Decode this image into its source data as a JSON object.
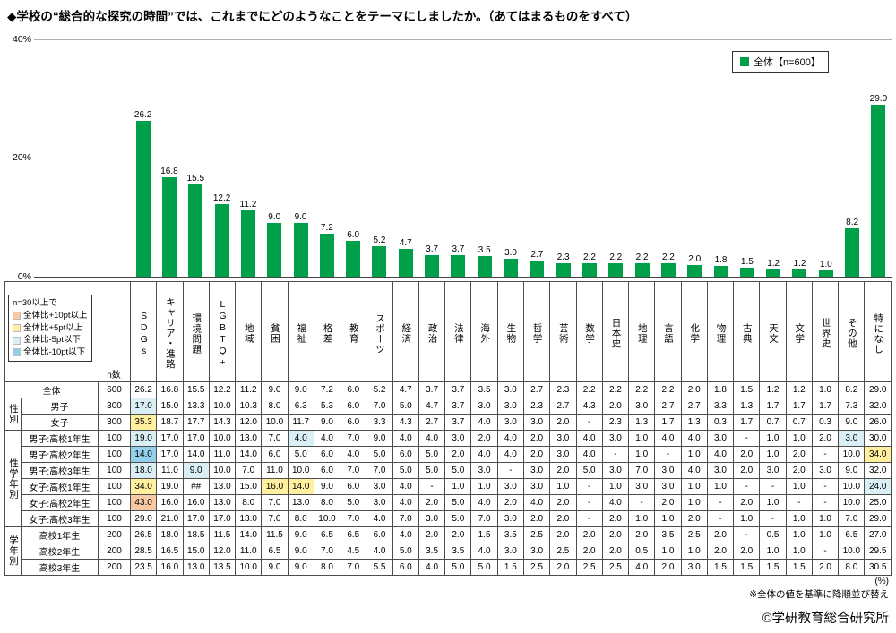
{
  "title": "◆学校の“総合的な探究の時間”では、これまでにどのようなことをテーマにしましたか。（あてはまるものをすべて）",
  "chart_data": {
    "type": "bar",
    "title": "学校の総合的な探究の時間でテーマにしたこと",
    "legend": "全体【n=600】",
    "legend_position": "top-right",
    "grid": true,
    "ylim": [
      0,
      40
    ],
    "yticks": [
      "40%",
      "20%",
      "0%"
    ],
    "bar_color": "#00a04b",
    "categories": [
      "SDGs",
      "キャリア・進路",
      "環境問題",
      "LGBTQ+",
      "地域",
      "貧困",
      "福祉",
      "格差",
      "教育",
      "スポーツ",
      "経済",
      "政治",
      "法律",
      "海外",
      "生物",
      "哲学",
      "芸術",
      "数学",
      "日本史",
      "地理",
      "言語",
      "化学",
      "物理",
      "古典",
      "天文",
      "文学",
      "世界史",
      "その他",
      "特になし"
    ],
    "values": [
      26.2,
      16.8,
      15.5,
      12.2,
      11.2,
      9.0,
      9.0,
      7.2,
      6.0,
      5.2,
      4.7,
      3.7,
      3.7,
      3.5,
      3.0,
      2.7,
      2.3,
      2.2,
      2.2,
      2.2,
      2.2,
      2.0,
      1.8,
      1.5,
      1.2,
      1.2,
      1.0,
      8.2,
      29.0
    ],
    "labels": [
      "26.2",
      "16.8",
      "15.5",
      "12.2",
      "11.2",
      "9.0",
      "9.0",
      "7.2",
      "6.0",
      "5.2",
      "4.7",
      "3.7",
      "3.7",
      "3.5",
      "3.0",
      "2.7",
      "2.3",
      "2.2",
      "2.2",
      "2.2",
      "2.2",
      "2.0",
      "1.8",
      "1.5",
      "1.2",
      "1.2",
      "1.0",
      "8.2",
      "29.0"
    ]
  },
  "table": {
    "n_label": "n数",
    "columns": [
      "SDGs",
      "キャリア・進路",
      "環境問題",
      "LGBTQ+",
      "地域",
      "貧困",
      "福祉",
      "格差",
      "教育",
      "スポーツ",
      "経済",
      "政治",
      "法律",
      "海外",
      "生物",
      "哲学",
      "芸術",
      "数学",
      "日本史",
      "地理",
      "言語",
      "化学",
      "物理",
      "古典",
      "天文",
      "文学",
      "世界史",
      "その他",
      "特になし"
    ],
    "threshold_legend": {
      "intro": "n=30以上で",
      "items": [
        {
          "key": "plus10",
          "label": "全体比+10pt以上"
        },
        {
          "key": "plus5",
          "label": "全体比+5pt以上"
        },
        {
          "key": "minus5",
          "label": "全体比-5pt以下"
        },
        {
          "key": "minus10",
          "label": "全体比-10pt以下"
        }
      ],
      "colors": {
        "plus10": "#f7c9a4",
        "plus5": "#ffef9e",
        "minus5": "#daeef5",
        "minus10": "#92d0ec"
      }
    },
    "rows": [
      {
        "group": "",
        "group_rows": 0,
        "label": "全体",
        "n": "600",
        "values": [
          "26.2",
          "16.8",
          "15.5",
          "12.2",
          "11.2",
          "9.0",
          "9.0",
          "7.2",
          "6.0",
          "5.2",
          "4.7",
          "3.7",
          "3.7",
          "3.5",
          "3.0",
          "2.7",
          "2.3",
          "2.2",
          "2.2",
          "2.2",
          "2.2",
          "2.0",
          "1.8",
          "1.5",
          "1.2",
          "1.2",
          "1.0",
          "8.2",
          "29.0"
        ],
        "hl": {}
      },
      {
        "group": "性別",
        "group_rows": 2,
        "label": "男子",
        "n": "300",
        "values": [
          "17.0",
          "15.0",
          "13.3",
          "10.0",
          "10.3",
          "8.0",
          "6.3",
          "5.3",
          "6.0",
          "7.0",
          "5.0",
          "4.7",
          "3.7",
          "3.0",
          "3.0",
          "2.3",
          "2.7",
          "4.3",
          "2.0",
          "3.0",
          "2.7",
          "2.7",
          "3.3",
          "1.3",
          "1.7",
          "1.7",
          "1.7",
          "7.3",
          "32.0"
        ],
        "hl": {
          "0": "minus5"
        }
      },
      {
        "label": "女子",
        "n": "300",
        "values": [
          "35.3",
          "18.7",
          "17.7",
          "14.3",
          "12.0",
          "10.0",
          "11.7",
          "9.0",
          "6.0",
          "3.3",
          "4.3",
          "2.7",
          "3.7",
          "4.0",
          "3.0",
          "3.0",
          "2.0",
          "-",
          "2.3",
          "1.3",
          "1.7",
          "1.3",
          "0.3",
          "1.7",
          "0.7",
          "0.7",
          "0.3",
          "9.0",
          "26.0"
        ],
        "hl": {
          "0": "plus5"
        }
      },
      {
        "group": "性学年別",
        "group_rows": 6,
        "label": "男子:高校1年生",
        "n": "100",
        "values": [
          "19.0",
          "17.0",
          "17.0",
          "10.0",
          "13.0",
          "7.0",
          "4.0",
          "4.0",
          "7.0",
          "9.0",
          "4.0",
          "4.0",
          "3.0",
          "2.0",
          "4.0",
          "2.0",
          "3.0",
          "4.0",
          "3.0",
          "1.0",
          "4.0",
          "4.0",
          "3.0",
          "-",
          "1.0",
          "1.0",
          "2.0",
          "3.0",
          "30.0"
        ],
        "hl": {
          "0": "minus5",
          "6": "minus5",
          "27": "minus5"
        }
      },
      {
        "label": "男子:高校2年生",
        "n": "100",
        "values": [
          "14.0",
          "17.0",
          "14.0",
          "11.0",
          "14.0",
          "6.0",
          "5.0",
          "6.0",
          "4.0",
          "5.0",
          "6.0",
          "5.0",
          "2.0",
          "4.0",
          "4.0",
          "2.0",
          "3.0",
          "4.0",
          "-",
          "1.0",
          "-",
          "1.0",
          "4.0",
          "2.0",
          "1.0",
          "2.0",
          "-",
          "10.0",
          "34.0"
        ],
        "hl": {
          "0": "minus10",
          "28": "plus5"
        }
      },
      {
        "label": "男子:高校3年生",
        "n": "100",
        "values": [
          "18.0",
          "11.0",
          "9.0",
          "10.0",
          "7.0",
          "11.0",
          "10.0",
          "6.0",
          "7.0",
          "7.0",
          "5.0",
          "5.0",
          "5.0",
          "3.0",
          "-",
          "3.0",
          "2.0",
          "5.0",
          "3.0",
          "7.0",
          "3.0",
          "4.0",
          "3.0",
          "2.0",
          "3.0",
          "2.0",
          "3.0",
          "9.0",
          "32.0"
        ],
        "hl": {
          "0": "minus5",
          "2": "minus5"
        }
      },
      {
        "label": "女子:高校1年生",
        "n": "100",
        "values": [
          "34.0",
          "19.0",
          "##",
          "13.0",
          "15.0",
          "16.0",
          "14.0",
          "9.0",
          "6.0",
          "3.0",
          "4.0",
          "-",
          "1.0",
          "1.0",
          "3.0",
          "3.0",
          "1.0",
          "-",
          "1.0",
          "3.0",
          "3.0",
          "1.0",
          "1.0",
          "-",
          "-",
          "1.0",
          "-",
          "10.0",
          "24.0"
        ],
        "hl": {
          "0": "plus5",
          "5": "plus5",
          "6": "plus5",
          "28": "minus5"
        }
      },
      {
        "label": "女子:高校2年生",
        "n": "100",
        "values": [
          "43.0",
          "16.0",
          "16.0",
          "13.0",
          "8.0",
          "7.0",
          "13.0",
          "8.0",
          "5.0",
          "3.0",
          "4.0",
          "2.0",
          "5.0",
          "4.0",
          "2.0",
          "4.0",
          "2.0",
          "-",
          "4.0",
          "-",
          "2.0",
          "1.0",
          "-",
          "2.0",
          "1.0",
          "-",
          "-",
          "10.0",
          "25.0"
        ],
        "hl": {
          "0": "plus10"
        }
      },
      {
        "label": "女子:高校3年生",
        "n": "100",
        "values": [
          "29.0",
          "21.0",
          "17.0",
          "17.0",
          "13.0",
          "7.0",
          "8.0",
          "10.0",
          "7.0",
          "4.0",
          "7.0",
          "3.0",
          "5.0",
          "7.0",
          "3.0",
          "2.0",
          "2.0",
          "-",
          "2.0",
          "1.0",
          "1.0",
          "2.0",
          "-",
          "1.0",
          "-",
          "1.0",
          "1.0",
          "7.0",
          "29.0"
        ],
        "hl": {}
      },
      {
        "group": "学年別",
        "group_rows": 3,
        "label": "高校1年生",
        "n": "200",
        "values": [
          "26.5",
          "18.0",
          "18.5",
          "11.5",
          "14.0",
          "11.5",
          "9.0",
          "6.5",
          "6.5",
          "6.0",
          "4.0",
          "2.0",
          "2.0",
          "1.5",
          "3.5",
          "2.5",
          "2.0",
          "2.0",
          "2.0",
          "2.0",
          "3.5",
          "2.5",
          "2.0",
          "-",
          "0.5",
          "1.0",
          "1.0",
          "6.5",
          "27.0"
        ],
        "hl": {}
      },
      {
        "label": "高校2年生",
        "n": "200",
        "values": [
          "28.5",
          "16.5",
          "15.0",
          "12.0",
          "11.0",
          "6.5",
          "9.0",
          "7.0",
          "4.5",
          "4.0",
          "5.0",
          "3.5",
          "3.5",
          "4.0",
          "3.0",
          "3.0",
          "2.5",
          "2.0",
          "2.0",
          "0.5",
          "1.0",
          "1.0",
          "2.0",
          "2.0",
          "1.0",
          "1.0",
          "-",
          "10.0",
          "29.5"
        ],
        "hl": {}
      },
      {
        "label": "高校3年生",
        "n": "200",
        "values": [
          "23.5",
          "16.0",
          "13.0",
          "13.5",
          "10.0",
          "9.0",
          "9.0",
          "8.0",
          "7.0",
          "5.5",
          "6.0",
          "4.0",
          "5.0",
          "5.0",
          "1.5",
          "2.5",
          "2.0",
          "2.5",
          "2.5",
          "4.0",
          "2.0",
          "3.0",
          "1.5",
          "1.5",
          "1.5",
          "1.5",
          "2.0",
          "8.0",
          "30.5"
        ],
        "hl": {}
      }
    ]
  },
  "footer": {
    "unit": "(%)",
    "note": "※全体の値を基準に降順並び替え",
    "credit": "©学研教育総合研究所"
  }
}
